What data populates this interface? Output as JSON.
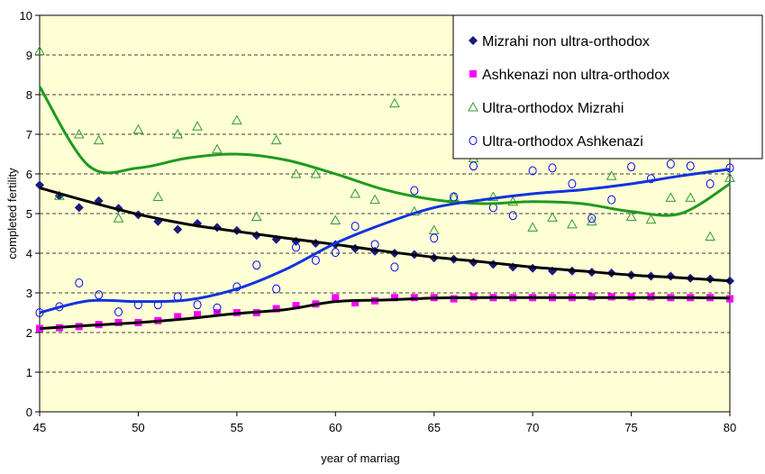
{
  "chart_data": {
    "type": "scatter",
    "xlabel": "year of marriag",
    "ylabel": "completed fertility",
    "xlim": [
      45,
      80
    ],
    "ylim": [
      0,
      10
    ],
    "xticks": [
      45,
      50,
      55,
      60,
      65,
      70,
      75,
      80
    ],
    "yticks": [
      0,
      1,
      2,
      3,
      4,
      5,
      6,
      7,
      8,
      9,
      10
    ],
    "grid": true,
    "legend": "upper right",
    "background": "#ffffd5",
    "x": [
      45,
      46,
      47,
      48,
      49,
      50,
      51,
      52,
      53,
      54,
      55,
      56,
      57,
      58,
      59,
      60,
      61,
      62,
      63,
      64,
      65,
      66,
      67,
      68,
      69,
      70,
      71,
      72,
      73,
      74,
      75,
      76,
      77,
      78,
      79,
      80
    ],
    "trend_x": [
      45,
      47.5,
      50,
      52.5,
      55,
      57.5,
      60,
      62.5,
      65,
      67.5,
      70,
      72.5,
      75,
      77.5,
      80
    ],
    "series": [
      {
        "name": "Mizrahi non ultra-orthodox",
        "color": "#1a1a80",
        "marker": "diamond",
        "trend_color": "#000000",
        "values": [
          5.72,
          5.45,
          5.15,
          5.32,
          5.13,
          4.97,
          4.8,
          4.6,
          4.75,
          4.65,
          4.57,
          4.45,
          4.35,
          4.3,
          4.25,
          4.22,
          4.12,
          4.05,
          4.0,
          3.97,
          3.88,
          3.85,
          3.77,
          3.72,
          3.65,
          3.62,
          3.55,
          3.55,
          3.52,
          3.5,
          3.45,
          3.42,
          3.42,
          3.37,
          3.35,
          3.3
        ],
        "trend_values": [
          5.65,
          5.3,
          4.98,
          4.73,
          4.55,
          4.38,
          4.22,
          4.05,
          3.9,
          3.78,
          3.65,
          3.55,
          3.45,
          3.38,
          3.3
        ]
      },
      {
        "name": "Ashkenazi non ultra-orthodox",
        "color": "#ff00ff",
        "marker": "square",
        "trend_color": "#000000",
        "values": [
          2.1,
          2.12,
          2.15,
          2.2,
          2.25,
          2.25,
          2.3,
          2.4,
          2.45,
          2.5,
          2.5,
          2.5,
          2.6,
          2.68,
          2.72,
          2.88,
          2.75,
          2.8,
          2.88,
          2.88,
          2.88,
          2.85,
          2.9,
          2.88,
          2.88,
          2.88,
          2.88,
          2.88,
          2.9,
          2.9,
          2.9,
          2.9,
          2.88,
          2.88,
          2.88,
          2.85
        ],
        "trend_values": [
          2.1,
          2.18,
          2.25,
          2.35,
          2.48,
          2.58,
          2.78,
          2.82,
          2.87,
          2.88,
          2.88,
          2.88,
          2.88,
          2.88,
          2.87
        ]
      },
      {
        "name": "Ultra-orthodox Mizrahi",
        "color": "#339933",
        "marker": "triangle",
        "trend_color": "#1e9a1e",
        "values": [
          9.1,
          5.45,
          7.0,
          6.85,
          4.88,
          7.12,
          5.42,
          7.0,
          7.2,
          6.62,
          7.35,
          4.92,
          6.85,
          6.0,
          6.0,
          4.83,
          5.5,
          5.35,
          7.78,
          5.05,
          4.58,
          5.42,
          6.4,
          5.42,
          5.3,
          4.65,
          4.9,
          4.73,
          4.8,
          5.95,
          4.92,
          4.85,
          5.4,
          5.4,
          4.42,
          5.9
        ],
        "trend_values": [
          8.2,
          6.2,
          6.15,
          6.4,
          6.5,
          6.35,
          6.0,
          5.6,
          5.35,
          5.25,
          5.3,
          5.25,
          5.05,
          5.0,
          5.75
        ]
      },
      {
        "name": "Ultra-orthodox Ashkenazi",
        "color": "#0000ff",
        "marker": "circle",
        "trend_color": "#1133dd",
        "values": [
          2.5,
          2.65,
          3.25,
          2.95,
          2.52,
          2.7,
          2.7,
          2.9,
          2.7,
          2.62,
          3.15,
          3.7,
          3.1,
          4.15,
          3.82,
          4.02,
          4.68,
          4.22,
          3.65,
          5.58,
          4.38,
          5.42,
          6.2,
          5.15,
          4.95,
          6.08,
          6.15,
          5.75,
          4.88,
          5.35,
          6.18,
          5.88,
          6.25,
          6.2,
          5.75,
          6.15
        ],
        "trend_values": [
          2.5,
          2.8,
          2.78,
          2.82,
          3.1,
          3.6,
          4.25,
          4.75,
          5.15,
          5.35,
          5.5,
          5.6,
          5.75,
          5.95,
          6.12
        ]
      }
    ]
  }
}
